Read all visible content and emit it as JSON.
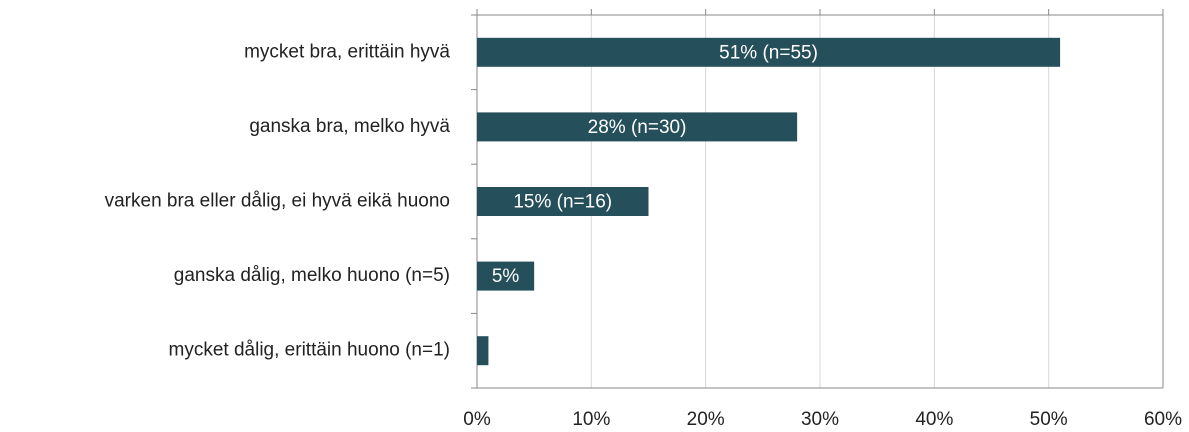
{
  "chart_data": {
    "type": "hbar",
    "categories": [
      "mycket bra, erittäin hyvä",
      "ganska bra, melko hyvä",
      "varken bra eller dålig, ei hyvä eikä huono",
      "ganska dålig, melko huono (n=5)",
      "mycket dålig, erittäin huono (n=1)"
    ],
    "values": [
      51,
      28,
      15,
      5,
      1
    ],
    "value_labels": [
      "51% (n=55)",
      "28% (n=30)",
      "15% (n=16)",
      "5%",
      null
    ],
    "color": "#254f5b",
    "xlim": [
      0,
      60
    ],
    "xticks": [
      {
        "value": 0,
        "label": "0%"
      },
      {
        "value": 10,
        "label": "10%"
      },
      {
        "value": 20,
        "label": "20%"
      },
      {
        "value": 30,
        "label": "30%"
      },
      {
        "value": 40,
        "label": "40%"
      },
      {
        "value": 50,
        "label": "50%"
      },
      {
        "value": 60,
        "label": "60%"
      }
    ],
    "grid": true
  }
}
